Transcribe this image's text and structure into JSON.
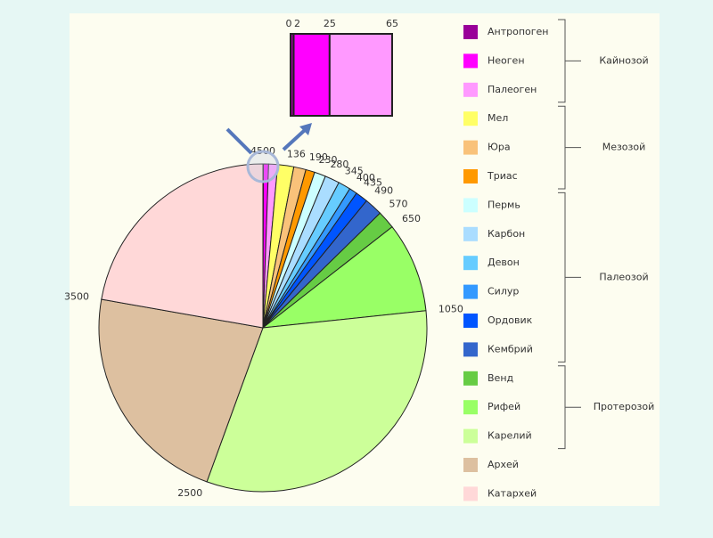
{
  "chart_data": {
    "type": "pie",
    "boundaries": [
      0,
      2,
      25,
      65,
      136,
      190,
      230,
      280,
      345,
      400,
      435,
      490,
      570,
      650,
      1050,
      2500,
      3500,
      4500
    ],
    "eras": [
      {
        "name": "Кайнозой",
        "periods": [
          {
            "name": "Антропоген",
            "color": "#990099"
          },
          {
            "name": "Неоген",
            "color": "#ff00ff"
          },
          {
            "name": "Палеоген",
            "color": "#ff99ff"
          }
        ]
      },
      {
        "name": "Мезозой",
        "periods": [
          {
            "name": "Мел",
            "color": "#ffff66"
          },
          {
            "name": "Юра",
            "color": "#f9c27a"
          },
          {
            "name": "Триас",
            "color": "#ff9900"
          }
        ]
      },
      {
        "name": "Палеозой",
        "periods": [
          {
            "name": "Пермь",
            "color": "#ccffff"
          },
          {
            "name": "Карбон",
            "color": "#aaddff"
          },
          {
            "name": "Девон",
            "color": "#66ccff"
          },
          {
            "name": "Силур",
            "color": "#3399ff"
          },
          {
            "name": "Ордовик",
            "color": "#0055ff"
          },
          {
            "name": "Кембрий",
            "color": "#3366cc"
          }
        ]
      },
      {
        "name": "Протерозой",
        "periods": [
          {
            "name": "Венд",
            "color": "#66cc44"
          },
          {
            "name": "Рифей",
            "color": "#99ff66"
          },
          {
            "name": "Карелий",
            "color": "#ccff99"
          }
        ]
      },
      {
        "name": null,
        "periods": [
          {
            "name": "Архей",
            "color": "#ddc0a0"
          },
          {
            "name": "Катархей",
            "color": "#ffd8d8"
          }
        ]
      }
    ]
  }
}
